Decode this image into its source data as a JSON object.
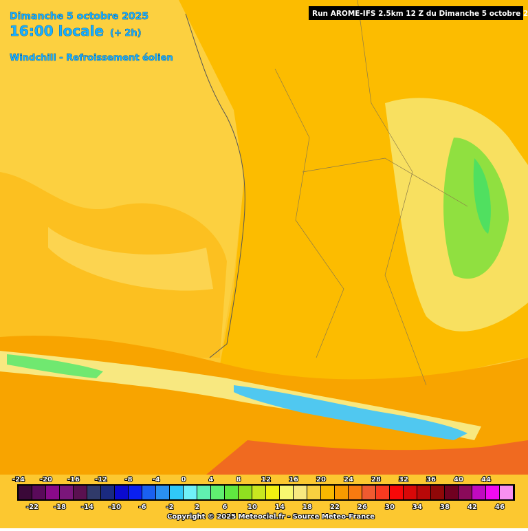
{
  "header": {
    "date": "Dimanche 5 octobre 2025",
    "time": "16:00 locale",
    "offset": "(+ 2h)",
    "parameter": "Windchill - Refroissement éolien",
    "run": "Run AROME-IFS 2.5km 12 Z du Dimanche 5 octobre 2025"
  },
  "legend": {
    "values": [
      -24,
      -22,
      -20,
      -18,
      -16,
      -14,
      -12,
      -10,
      -8,
      -6,
      -4,
      -2,
      0,
      2,
      4,
      6,
      8,
      10,
      12,
      14,
      16,
      18,
      20,
      22,
      24,
      26,
      28,
      30,
      32,
      34,
      36,
      38,
      40,
      42,
      44,
      46
    ],
    "colors": [
      "#3a0838",
      "#5a0a5a",
      "#8a0a8a",
      "#7a167a",
      "#5a1050",
      "#303a6a",
      "#1a2a80",
      "#0a0ad0",
      "#0a20f0",
      "#1a60f0",
      "#2a90f0",
      "#30c8f8",
      "#70f0f8",
      "#60f0b0",
      "#60f070",
      "#60e840",
      "#90e020",
      "#c8e820",
      "#f0f010",
      "#f8f870",
      "#f8e880",
      "#f8d040",
      "#f8b800",
      "#f89a00",
      "#f87a10",
      "#f05a30",
      "#f83a20",
      "#f80808",
      "#d80808",
      "#b80808",
      "#900808",
      "#700020",
      "#8a0a5a",
      "#c00ac0",
      "#f00af0",
      "#f890f0"
    ]
  },
  "footer": "Copyright © 2025 Meteociel.fr - Source Meteo-France"
}
